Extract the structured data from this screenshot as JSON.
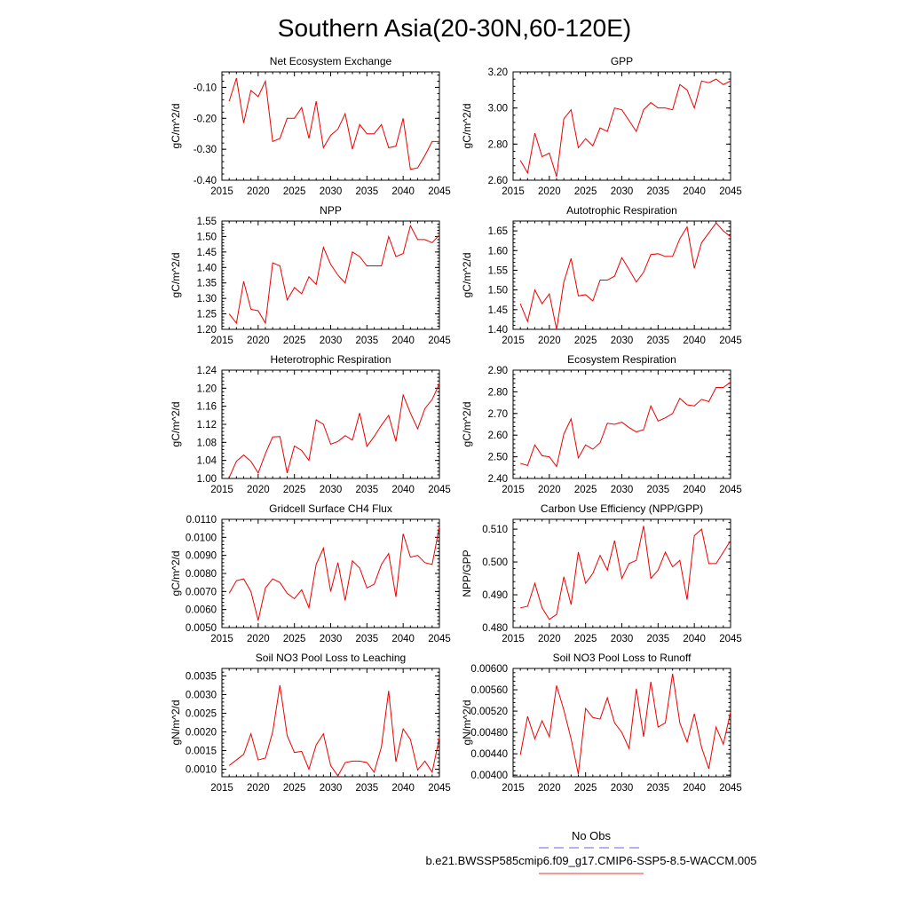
{
  "title": "Southern Asia(20-30N,60-120E)",
  "legend": {
    "obs_label": "No Obs",
    "model_label": "b.e21.BWSSP585cmip6.f09_g17.CMIP6-SSP5-8.5-WACCM.005",
    "obs_color": "#6666dd",
    "model_color": "#ee3333"
  },
  "colors": {
    "series": "#ee0000",
    "axis": "#000000"
  },
  "chart_data": [
    {
      "type": "line",
      "title": "Net Ecosystem Exchange",
      "ylabel": "gC/m^2/d",
      "xlim": [
        2015,
        2045
      ],
      "ylim": [
        -0.4,
        -0.05
      ],
      "xticks": [
        2015,
        2020,
        2025,
        2030,
        2035,
        2040,
        2045
      ],
      "xtick_labels": [
        "2015",
        "2020",
        "2025",
        "2030",
        "2035",
        "2040",
        "2045"
      ],
      "yticks": [
        -0.4,
        -0.3,
        -0.2,
        -0.1
      ],
      "ytick_labels": [
        "-0.40",
        "-0.30",
        "-0.20",
        "-0.10"
      ],
      "x": [
        2016,
        2017,
        2018,
        2019,
        2020,
        2021,
        2022,
        2023,
        2024,
        2025,
        2026,
        2027,
        2028,
        2029,
        2030,
        2031,
        2032,
        2033,
        2034,
        2035,
        2036,
        2037,
        2038,
        2039,
        2040,
        2041,
        2042,
        2043,
        2044,
        2045
      ],
      "values": [
        -0.145,
        -0.07,
        -0.215,
        -0.11,
        -0.13,
        -0.08,
        -0.275,
        -0.265,
        -0.2,
        -0.2,
        -0.165,
        -0.265,
        -0.145,
        -0.295,
        -0.255,
        -0.235,
        -0.185,
        -0.3,
        -0.22,
        -0.25,
        -0.25,
        -0.22,
        -0.295,
        -0.29,
        -0.2,
        -0.365,
        -0.36,
        -0.32,
        -0.275,
        -0.275
      ]
    },
    {
      "type": "line",
      "title": "GPP",
      "ylabel": "gC/m^2/d",
      "xlim": [
        2015,
        2045
      ],
      "ylim": [
        2.6,
        3.2
      ],
      "xticks": [
        2015,
        2020,
        2025,
        2030,
        2035,
        2040,
        2045
      ],
      "xtick_labels": [
        "2015",
        "2020",
        "2025",
        "2030",
        "2035",
        "2040",
        "2045"
      ],
      "yticks": [
        2.6,
        2.8,
        3.0,
        3.2
      ],
      "ytick_labels": [
        "2.60",
        "2.80",
        "3.00",
        "3.20"
      ],
      "x": [
        2016,
        2017,
        2018,
        2019,
        2020,
        2021,
        2022,
        2023,
        2024,
        2025,
        2026,
        2027,
        2028,
        2029,
        2030,
        2031,
        2032,
        2033,
        2034,
        2035,
        2036,
        2037,
        2038,
        2039,
        2040,
        2041,
        2042,
        2043,
        2044,
        2045
      ],
      "values": [
        2.71,
        2.64,
        2.86,
        2.73,
        2.75,
        2.62,
        2.94,
        2.99,
        2.78,
        2.83,
        2.79,
        2.89,
        2.87,
        3.0,
        2.99,
        2.93,
        2.87,
        2.99,
        3.03,
        3.0,
        3.0,
        2.99,
        3.13,
        3.1,
        3.0,
        3.15,
        3.14,
        3.16,
        3.13,
        3.15
      ]
    },
    {
      "type": "line",
      "title": "NPP",
      "ylabel": "gC/m^2/d",
      "xlim": [
        2015,
        2045
      ],
      "ylim": [
        1.2,
        1.55
      ],
      "xticks": [
        2015,
        2020,
        2025,
        2030,
        2035,
        2040,
        2045
      ],
      "xtick_labels": [
        "2015",
        "2020",
        "2025",
        "2030",
        "2035",
        "2040",
        "2045"
      ],
      "yticks": [
        1.2,
        1.25,
        1.3,
        1.35,
        1.4,
        1.45,
        1.5,
        1.55
      ],
      "ytick_labels": [
        "1.20",
        "1.25",
        "1.30",
        "1.35",
        "1.40",
        "1.45",
        "1.50",
        "1.55"
      ],
      "x": [
        2016,
        2017,
        2018,
        2019,
        2020,
        2021,
        2022,
        2023,
        2024,
        2025,
        2026,
        2027,
        2028,
        2029,
        2030,
        2031,
        2032,
        2033,
        2034,
        2035,
        2036,
        2037,
        2038,
        2039,
        2040,
        2041,
        2042,
        2043,
        2044,
        2045
      ],
      "values": [
        1.25,
        1.22,
        1.355,
        1.265,
        1.26,
        1.22,
        1.415,
        1.405,
        1.295,
        1.335,
        1.315,
        1.37,
        1.345,
        1.465,
        1.41,
        1.375,
        1.35,
        1.45,
        1.435,
        1.405,
        1.405,
        1.405,
        1.5,
        1.435,
        1.445,
        1.535,
        1.49,
        1.49,
        1.48,
        1.505
      ]
    },
    {
      "type": "line",
      "title": "Autotrophic Respiration",
      "ylabel": "gC/m^2/d",
      "xlim": [
        2015,
        2045
      ],
      "ylim": [
        1.4,
        1.675
      ],
      "xticks": [
        2015,
        2020,
        2025,
        2030,
        2035,
        2040,
        2045
      ],
      "xtick_labels": [
        "2015",
        "2020",
        "2025",
        "2030",
        "2035",
        "2040",
        "2045"
      ],
      "yticks": [
        1.4,
        1.45,
        1.5,
        1.55,
        1.6,
        1.65
      ],
      "ytick_labels": [
        "1.40",
        "1.45",
        "1.50",
        "1.55",
        "1.60",
        "1.65"
      ],
      "x": [
        2016,
        2017,
        2018,
        2019,
        2020,
        2021,
        2022,
        2023,
        2024,
        2025,
        2026,
        2027,
        2028,
        2029,
        2030,
        2031,
        2032,
        2033,
        2034,
        2035,
        2036,
        2037,
        2038,
        2039,
        2040,
        2041,
        2042,
        2043,
        2044,
        2045
      ],
      "values": [
        1.465,
        1.42,
        1.5,
        1.465,
        1.49,
        1.4,
        1.52,
        1.58,
        1.485,
        1.488,
        1.472,
        1.525,
        1.525,
        1.535,
        1.582,
        1.552,
        1.52,
        1.545,
        1.59,
        1.592,
        1.585,
        1.585,
        1.63,
        1.66,
        1.555,
        1.62,
        1.645,
        1.67,
        1.65,
        1.635
      ]
    },
    {
      "type": "line",
      "title": "Heterotrophic Respiration",
      "ylabel": "gC/m^2/d",
      "xlim": [
        2015,
        2045
      ],
      "ylim": [
        1.0,
        1.24
      ],
      "xticks": [
        2015,
        2020,
        2025,
        2030,
        2035,
        2040,
        2045
      ],
      "xtick_labels": [
        "2015",
        "2020",
        "2025",
        "2030",
        "2035",
        "2040",
        "2045"
      ],
      "yticks": [
        1.0,
        1.04,
        1.08,
        1.12,
        1.16,
        1.2,
        1.24
      ],
      "ytick_labels": [
        "1.00",
        "1.04",
        "1.08",
        "1.12",
        "1.16",
        "1.20",
        "1.24"
      ],
      "x": [
        2016,
        2017,
        2018,
        2019,
        2020,
        2021,
        2022,
        2023,
        2024,
        2025,
        2026,
        2027,
        2028,
        2029,
        2030,
        2031,
        2032,
        2033,
        2034,
        2035,
        2036,
        2037,
        2038,
        2039,
        2040,
        2041,
        2042,
        2043,
        2044,
        2045
      ],
      "values": [
        1.002,
        1.038,
        1.052,
        1.038,
        1.012,
        1.055,
        1.092,
        1.093,
        1.012,
        1.072,
        1.062,
        1.04,
        1.13,
        1.12,
        1.076,
        1.082,
        1.095,
        1.085,
        1.145,
        1.071,
        1.093,
        1.118,
        1.14,
        1.082,
        1.185,
        1.145,
        1.11,
        1.155,
        1.175,
        1.21
      ]
    },
    {
      "type": "line",
      "title": "Ecosystem Respiration",
      "ylabel": "gC/m^2/d",
      "xlim": [
        2015,
        2045
      ],
      "ylim": [
        2.4,
        2.9
      ],
      "xticks": [
        2015,
        2020,
        2025,
        2030,
        2035,
        2040,
        2045
      ],
      "xtick_labels": [
        "2015",
        "2020",
        "2025",
        "2030",
        "2035",
        "2040",
        "2045"
      ],
      "yticks": [
        2.4,
        2.5,
        2.6,
        2.7,
        2.8,
        2.9
      ],
      "ytick_labels": [
        "2.40",
        "2.50",
        "2.60",
        "2.70",
        "2.80",
        "2.90"
      ],
      "x": [
        2016,
        2017,
        2018,
        2019,
        2020,
        2021,
        2022,
        2023,
        2024,
        2025,
        2026,
        2027,
        2028,
        2029,
        2030,
        2031,
        2032,
        2033,
        2034,
        2035,
        2036,
        2037,
        2038,
        2039,
        2040,
        2041,
        2042,
        2043,
        2044,
        2045
      ],
      "values": [
        2.47,
        2.46,
        2.555,
        2.505,
        2.5,
        2.455,
        2.605,
        2.675,
        2.495,
        2.555,
        2.535,
        2.565,
        2.655,
        2.65,
        2.66,
        2.635,
        2.615,
        2.625,
        2.735,
        2.665,
        2.68,
        2.7,
        2.77,
        2.74,
        2.735,
        2.765,
        2.755,
        2.82,
        2.82,
        2.845
      ]
    },
    {
      "type": "line",
      "title": "Gridcell Surface CH4 Flux",
      "ylabel": "gC/m^2/d",
      "xlim": [
        2015,
        2045
      ],
      "ylim": [
        0.005,
        0.011
      ],
      "xticks": [
        2015,
        2020,
        2025,
        2030,
        2035,
        2040,
        2045
      ],
      "xtick_labels": [
        "2015",
        "2020",
        "2025",
        "2030",
        "2035",
        "2040",
        "2045"
      ],
      "yticks": [
        0.005,
        0.006,
        0.007,
        0.008,
        0.009,
        0.01,
        0.011
      ],
      "ytick_labels": [
        "0.0050",
        "0.0060",
        "0.0070",
        "0.0080",
        "0.0090",
        "0.0100",
        "0.0110"
      ],
      "x": [
        2016,
        2017,
        2018,
        2019,
        2020,
        2021,
        2022,
        2023,
        2024,
        2025,
        2026,
        2027,
        2028,
        2029,
        2030,
        2031,
        2032,
        2033,
        2034,
        2035,
        2036,
        2037,
        2038,
        2039,
        2040,
        2041,
        2042,
        2043,
        2044,
        2045
      ],
      "values": [
        0.0069,
        0.0076,
        0.0077,
        0.007,
        0.0054,
        0.0072,
        0.0077,
        0.0075,
        0.0069,
        0.0066,
        0.0071,
        0.0061,
        0.0085,
        0.0094,
        0.007,
        0.0086,
        0.0065,
        0.0087,
        0.0083,
        0.0072,
        0.0074,
        0.0085,
        0.0091,
        0.0067,
        0.0102,
        0.0089,
        0.009,
        0.0086,
        0.0085,
        0.0106
      ]
    },
    {
      "type": "line",
      "title": "Carbon Use Efficiency (NPP/GPP)",
      "ylabel": "NPP/GPP",
      "xlim": [
        2015,
        2045
      ],
      "ylim": [
        0.48,
        0.513
      ],
      "xticks": [
        2015,
        2020,
        2025,
        2030,
        2035,
        2040,
        2045
      ],
      "xtick_labels": [
        "2015",
        "2020",
        "2025",
        "2030",
        "2035",
        "2040",
        "2045"
      ],
      "yticks": [
        0.48,
        0.49,
        0.5,
        0.51
      ],
      "ytick_labels": [
        "0.480",
        "0.490",
        "0.500",
        "0.510"
      ],
      "x": [
        2016,
        2017,
        2018,
        2019,
        2020,
        2021,
        2022,
        2023,
        2024,
        2025,
        2026,
        2027,
        2028,
        2029,
        2030,
        2031,
        2032,
        2033,
        2034,
        2035,
        2036,
        2037,
        2038,
        2039,
        2040,
        2041,
        2042,
        2043,
        2044,
        2045
      ],
      "values": [
        0.486,
        0.4865,
        0.4935,
        0.486,
        0.4825,
        0.484,
        0.4955,
        0.487,
        0.503,
        0.4935,
        0.4965,
        0.502,
        0.4975,
        0.5065,
        0.495,
        0.4995,
        0.5005,
        0.511,
        0.495,
        0.4975,
        0.503,
        0.4985,
        0.5005,
        0.4885,
        0.508,
        0.51,
        0.4995,
        0.4995,
        0.503,
        0.5065
      ]
    },
    {
      "type": "line",
      "title": "Soil NO3 Pool Loss to Leaching",
      "ylabel": "gN/m^2/d",
      "xlim": [
        2015,
        2045
      ],
      "ylim": [
        0.0008,
        0.0037
      ],
      "xticks": [
        2015,
        2020,
        2025,
        2030,
        2035,
        2040,
        2045
      ],
      "xtick_labels": [
        "2015",
        "2020",
        "2025",
        "2030",
        "2035",
        "2040",
        "2045"
      ],
      "yticks": [
        0.001,
        0.0015,
        0.002,
        0.0025,
        0.003,
        0.0035
      ],
      "ytick_labels": [
        "0.0010",
        "0.0015",
        "0.0020",
        "0.0025",
        "0.0030",
        "0.0035"
      ],
      "x": [
        2016,
        2017,
        2018,
        2019,
        2020,
        2021,
        2022,
        2023,
        2024,
        2025,
        2026,
        2027,
        2028,
        2029,
        2030,
        2031,
        2032,
        2033,
        2034,
        2035,
        2036,
        2037,
        2038,
        2039,
        2040,
        2041,
        2042,
        2043,
        2044,
        2045
      ],
      "values": [
        0.0011,
        0.00125,
        0.0014,
        0.00195,
        0.00125,
        0.0013,
        0.002,
        0.00325,
        0.0019,
        0.00145,
        0.00148,
        0.001,
        0.00165,
        0.00195,
        0.0011,
        0.00082,
        0.00118,
        0.00122,
        0.00122,
        0.00118,
        0.00092,
        0.0016,
        0.0031,
        0.0012,
        0.00208,
        0.0018,
        0.00098,
        0.00122,
        0.00092,
        0.00185
      ]
    },
    {
      "type": "line",
      "title": "Soil NO3 Pool Loss to Runoff",
      "ylabel": "gN/m^2/d",
      "xlim": [
        2015,
        2045
      ],
      "ylim": [
        0.00397,
        0.006
      ],
      "xticks": [
        2015,
        2020,
        2025,
        2030,
        2035,
        2040,
        2045
      ],
      "xtick_labels": [
        "2015",
        "2020",
        "2025",
        "2030",
        "2035",
        "2040",
        "2045"
      ],
      "yticks": [
        0.004,
        0.0044,
        0.0048,
        0.0052,
        0.0056,
        0.006
      ],
      "ytick_labels": [
        "0.00400",
        "0.00440",
        "0.00480",
        "0.00520",
        "0.00560",
        "0.00600"
      ],
      "x": [
        2016,
        2017,
        2018,
        2019,
        2020,
        2021,
        2022,
        2023,
        2024,
        2025,
        2026,
        2027,
        2028,
        2029,
        2030,
        2031,
        2032,
        2033,
        2034,
        2035,
        2036,
        2037,
        2038,
        2039,
        2040,
        2041,
        2042,
        2043,
        2044,
        2045
      ],
      "values": [
        0.00438,
        0.0051,
        0.00468,
        0.00502,
        0.00472,
        0.00568,
        0.00522,
        0.00468,
        0.00402,
        0.00525,
        0.00508,
        0.00505,
        0.00545,
        0.00498,
        0.0048,
        0.0045,
        0.00562,
        0.00472,
        0.00575,
        0.0049,
        0.00498,
        0.0059,
        0.00498,
        0.00462,
        0.00515,
        0.00452,
        0.00412,
        0.0049,
        0.00458,
        0.00518
      ]
    }
  ]
}
